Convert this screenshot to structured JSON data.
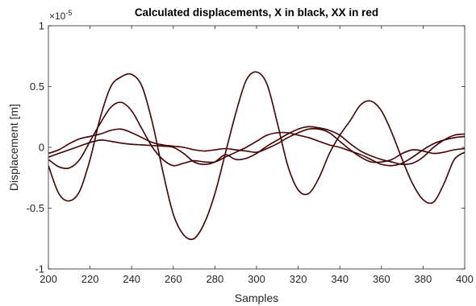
{
  "chart_data": {
    "type": "line",
    "title": "Calculated displacements, X in black, XX in red",
    "xlabel": "Samples",
    "ylabel": "Displacement [m]",
    "xlim": [
      200,
      400
    ],
    "ylim": [
      -1,
      1
    ],
    "y_exponent_label": "×10",
    "y_exponent_power": "-5",
    "xticks": [
      "200",
      "220",
      "240",
      "260",
      "280",
      "300",
      "320",
      "340",
      "360",
      "380",
      "400"
    ],
    "yticks": [
      "-1",
      "-0.5",
      "0",
      "0.5",
      "1"
    ],
    "grid": false,
    "colors": {
      "X": "#000000",
      "XX": "#cc0000"
    },
    "series": [
      {
        "x": [
          200,
          205,
          210,
          215,
          220,
          225,
          230,
          235,
          240,
          245,
          250,
          255,
          260,
          265,
          270,
          275,
          280,
          285,
          290,
          295,
          300,
          305,
          310,
          315,
          320,
          325,
          330,
          335,
          340,
          345,
          350,
          355,
          360,
          365,
          370,
          375,
          380,
          385,
          390,
          395,
          400
        ],
        "values": [
          -0.08,
          -0.05,
          -0.02,
          0.01,
          0.04,
          0.06,
          0.05,
          0.035,
          0.025,
          0.02,
          0.015,
          0.01,
          0.0,
          -0.05,
          -0.12,
          -0.14,
          -0.12,
          -0.06,
          -0.1,
          -0.09,
          -0.05,
          0.01,
          0.06,
          0.11,
          0.15,
          0.17,
          0.16,
          0.14,
          0.1,
          0.03,
          -0.03,
          -0.07,
          -0.1,
          -0.12,
          -0.14,
          -0.13,
          -0.08,
          0.0,
          0.06,
          0.1,
          0.11
        ]
      },
      {
        "x": [
          200,
          205,
          210,
          215,
          220,
          225,
          230,
          235,
          240,
          245,
          250,
          255,
          260,
          265,
          270,
          275,
          280,
          285,
          290,
          295,
          300,
          305,
          310,
          315,
          320,
          325,
          330,
          335,
          340,
          345,
          350,
          355,
          360,
          365,
          370,
          375,
          380,
          385,
          390,
          395,
          400
        ],
        "values": [
          -0.15,
          -0.38,
          -0.44,
          -0.36,
          -0.1,
          0.25,
          0.5,
          0.58,
          0.6,
          0.5,
          0.2,
          -0.2,
          -0.55,
          -0.72,
          -0.75,
          -0.62,
          -0.38,
          -0.05,
          0.28,
          0.55,
          0.62,
          0.52,
          0.2,
          -0.15,
          -0.35,
          -0.38,
          -0.25,
          -0.05,
          0.1,
          0.22,
          0.35,
          0.38,
          0.3,
          0.12,
          -0.1,
          -0.3,
          -0.43,
          -0.45,
          -0.3,
          -0.1,
          -0.04
        ]
      },
      {
        "x": [
          200,
          205,
          210,
          215,
          220,
          225,
          230,
          235,
          240,
          245,
          250,
          255,
          260,
          265,
          270,
          275,
          280,
          285,
          290,
          295,
          300,
          305,
          310,
          315,
          320,
          325,
          330,
          335,
          340,
          345,
          350,
          355,
          360,
          365,
          370,
          375,
          380,
          385,
          390,
          395,
          400
        ],
        "values": [
          -0.1,
          -0.16,
          -0.17,
          -0.1,
          0.05,
          0.2,
          0.33,
          0.37,
          0.3,
          0.15,
          0.0,
          -0.1,
          -0.15,
          -0.13,
          -0.11,
          -0.12,
          -0.12,
          -0.08,
          -0.04,
          0.0,
          0.05,
          0.1,
          0.12,
          0.12,
          0.1,
          0.08,
          0.05,
          0.02,
          0.0,
          -0.03,
          -0.06,
          -0.1,
          -0.14,
          -0.15,
          -0.13,
          -0.08,
          -0.02,
          0.03,
          0.06,
          0.08,
          0.09
        ]
      },
      {
        "x": [
          200,
          205,
          210,
          215,
          220,
          225,
          230,
          235,
          240,
          245,
          250,
          255,
          260,
          265,
          270,
          275,
          280,
          285,
          290,
          295,
          300,
          305,
          310,
          315,
          320,
          325,
          330,
          335,
          340,
          345,
          350,
          355,
          360,
          365,
          370,
          375,
          380,
          385,
          390,
          395,
          400
        ],
        "values": [
          -0.05,
          -0.02,
          0.03,
          0.07,
          0.09,
          0.11,
          0.14,
          0.15,
          0.12,
          0.08,
          0.04,
          0.02,
          0.01,
          0.0,
          -0.02,
          -0.03,
          -0.02,
          -0.01,
          -0.02,
          -0.03,
          -0.04,
          -0.01,
          0.03,
          0.08,
          0.12,
          0.15,
          0.15,
          0.12,
          0.05,
          -0.02,
          -0.08,
          -0.12,
          -0.12,
          -0.1,
          -0.05,
          -0.02,
          -0.03,
          -0.05,
          -0.04,
          -0.02,
          -0.01
        ]
      }
    ]
  }
}
